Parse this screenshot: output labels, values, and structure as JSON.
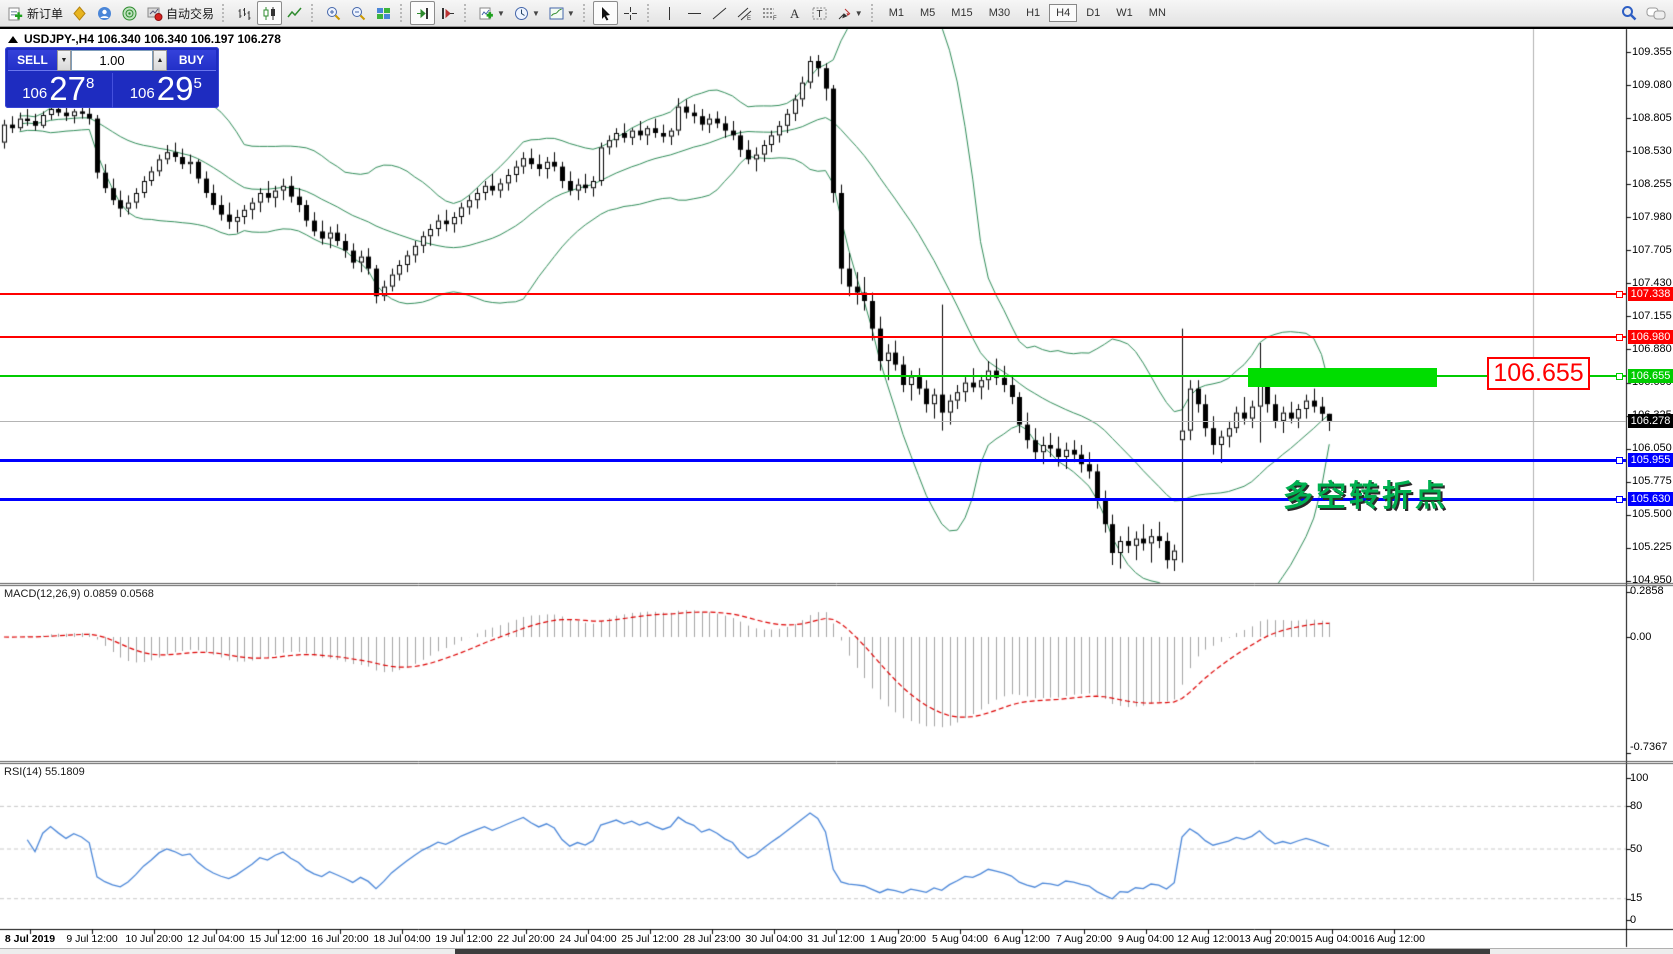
{
  "toolbar": {
    "new_order_label": "新订单",
    "autotrading_label": "自动交易",
    "timeframes": [
      "M1",
      "M5",
      "M15",
      "M30",
      "H1",
      "H4",
      "D1",
      "W1",
      "MN"
    ],
    "active_timeframe": "H4"
  },
  "chart": {
    "title": "USDJPY-,H4  106.340 106.340 106.197 106.278",
    "symbol": "USDJPY-",
    "period": "H4",
    "ohlc": {
      "open": "106.340",
      "high": "106.340",
      "low": "106.197",
      "close": "106.278"
    },
    "candles": [
      [
        108.6,
        108.79,
        108.55,
        108.75
      ],
      [
        108.75,
        108.82,
        108.68,
        108.72
      ],
      [
        108.72,
        108.85,
        108.7,
        108.8
      ],
      [
        108.8,
        108.88,
        108.74,
        108.78
      ],
      [
        108.78,
        108.84,
        108.7,
        108.74
      ],
      [
        108.74,
        108.86,
        108.72,
        108.83
      ],
      [
        108.83,
        108.92,
        108.79,
        108.88
      ],
      [
        108.88,
        108.95,
        108.82,
        108.85
      ],
      [
        108.85,
        108.9,
        108.78,
        108.82
      ],
      [
        108.82,
        108.88,
        108.76,
        108.86
      ],
      [
        108.86,
        108.93,
        108.8,
        108.84
      ],
      [
        108.84,
        108.89,
        108.75,
        108.8
      ],
      [
        108.8,
        108.83,
        108.3,
        108.35
      ],
      [
        108.35,
        108.42,
        108.18,
        108.22
      ],
      [
        108.22,
        108.3,
        108.08,
        108.12
      ],
      [
        108.12,
        108.2,
        107.98,
        108.05
      ],
      [
        108.05,
        108.16,
        108.0,
        108.1
      ],
      [
        108.1,
        108.22,
        108.05,
        108.18
      ],
      [
        108.18,
        108.32,
        108.14,
        108.28
      ],
      [
        108.28,
        108.4,
        108.24,
        108.36
      ],
      [
        108.36,
        108.5,
        108.32,
        108.46
      ],
      [
        108.46,
        108.58,
        108.42,
        108.52
      ],
      [
        108.52,
        108.6,
        108.44,
        108.48
      ],
      [
        108.48,
        108.55,
        108.38,
        108.42
      ],
      [
        108.42,
        108.5,
        108.34,
        108.44
      ],
      [
        108.44,
        108.46,
        108.26,
        108.3
      ],
      [
        108.3,
        108.36,
        108.14,
        108.18
      ],
      [
        108.18,
        108.25,
        108.04,
        108.08
      ],
      [
        108.08,
        108.16,
        107.95,
        108.0
      ],
      [
        108.0,
        108.1,
        107.88,
        107.94
      ],
      [
        107.94,
        108.04,
        107.85,
        107.98
      ],
      [
        107.98,
        108.08,
        107.92,
        108.04
      ],
      [
        108.04,
        108.14,
        107.96,
        108.1
      ],
      [
        108.1,
        108.22,
        108.02,
        108.18
      ],
      [
        108.18,
        108.28,
        108.1,
        108.14
      ],
      [
        108.14,
        108.24,
        108.06,
        108.2
      ],
      [
        108.2,
        108.3,
        108.12,
        108.24
      ],
      [
        108.24,
        108.32,
        108.1,
        108.15
      ],
      [
        108.15,
        108.22,
        108.02,
        108.08
      ],
      [
        108.08,
        108.12,
        107.9,
        107.95
      ],
      [
        107.95,
        108.02,
        107.82,
        107.86
      ],
      [
        107.86,
        107.95,
        107.75,
        107.8
      ],
      [
        107.8,
        107.9,
        107.72,
        107.85
      ],
      [
        107.85,
        107.92,
        107.74,
        107.78
      ],
      [
        107.78,
        107.84,
        107.64,
        107.7
      ],
      [
        107.7,
        107.76,
        107.55,
        107.6
      ],
      [
        107.6,
        107.7,
        107.52,
        107.65
      ],
      [
        107.65,
        107.72,
        107.5,
        107.55
      ],
      [
        107.55,
        107.58,
        107.26,
        107.32
      ],
      [
        107.32,
        107.45,
        107.28,
        107.4
      ],
      [
        107.4,
        107.55,
        107.36,
        107.5
      ],
      [
        107.5,
        107.62,
        107.45,
        107.58
      ],
      [
        107.58,
        107.7,
        107.52,
        107.66
      ],
      [
        107.66,
        107.78,
        107.6,
        107.74
      ],
      [
        107.74,
        107.86,
        107.68,
        107.82
      ],
      [
        107.82,
        107.92,
        107.74,
        107.88
      ],
      [
        107.88,
        108.0,
        107.82,
        107.95
      ],
      [
        107.95,
        108.04,
        107.86,
        107.92
      ],
      [
        107.92,
        108.02,
        107.85,
        107.98
      ],
      [
        107.98,
        108.1,
        107.92,
        108.06
      ],
      [
        108.06,
        108.16,
        108.0,
        108.12
      ],
      [
        108.12,
        108.22,
        108.05,
        108.18
      ],
      [
        108.18,
        108.28,
        108.12,
        108.24
      ],
      [
        108.24,
        108.34,
        108.16,
        108.2
      ],
      [
        108.2,
        108.3,
        108.14,
        108.26
      ],
      [
        108.26,
        108.38,
        108.2,
        108.33
      ],
      [
        108.33,
        108.45,
        108.27,
        108.4
      ],
      [
        108.4,
        108.52,
        108.34,
        108.47
      ],
      [
        108.47,
        108.55,
        108.38,
        108.42
      ],
      [
        108.42,
        108.5,
        108.32,
        108.38
      ],
      [
        108.38,
        108.48,
        108.3,
        108.44
      ],
      [
        108.44,
        108.52,
        108.36,
        108.4
      ],
      [
        108.4,
        108.44,
        108.22,
        108.28
      ],
      [
        108.28,
        108.36,
        108.16,
        108.2
      ],
      [
        108.2,
        108.3,
        108.12,
        108.25
      ],
      [
        108.25,
        108.34,
        108.18,
        108.22
      ],
      [
        108.22,
        108.32,
        108.15,
        108.28
      ],
      [
        108.28,
        108.6,
        108.24,
        108.56
      ],
      [
        108.56,
        108.66,
        108.5,
        108.62
      ],
      [
        108.62,
        108.72,
        108.56,
        108.68
      ],
      [
        108.68,
        108.76,
        108.6,
        108.64
      ],
      [
        108.64,
        108.72,
        108.58,
        108.7
      ],
      [
        108.7,
        108.78,
        108.62,
        108.66
      ],
      [
        108.66,
        108.74,
        108.58,
        108.72
      ],
      [
        108.72,
        108.8,
        108.64,
        108.68
      ],
      [
        108.68,
        108.75,
        108.6,
        108.65
      ],
      [
        108.65,
        108.72,
        108.58,
        108.7
      ],
      [
        108.7,
        108.97,
        108.66,
        108.9
      ],
      [
        108.9,
        108.96,
        108.8,
        108.85
      ],
      [
        108.85,
        108.92,
        108.76,
        108.82
      ],
      [
        108.82,
        108.88,
        108.7,
        108.75
      ],
      [
        108.75,
        108.84,
        108.68,
        108.8
      ],
      [
        108.8,
        108.86,
        108.72,
        108.76
      ],
      [
        108.76,
        108.82,
        108.64,
        108.7
      ],
      [
        108.7,
        108.78,
        108.62,
        108.66
      ],
      [
        108.66,
        108.7,
        108.48,
        108.54
      ],
      [
        108.54,
        108.62,
        108.42,
        108.46
      ],
      [
        108.46,
        108.56,
        108.36,
        108.5
      ],
      [
        108.5,
        108.62,
        108.44,
        108.58
      ],
      [
        108.58,
        108.7,
        108.52,
        108.66
      ],
      [
        108.66,
        108.78,
        108.6,
        108.74
      ],
      [
        108.74,
        108.88,
        108.68,
        108.84
      ],
      [
        108.84,
        109.0,
        108.78,
        108.96
      ],
      [
        108.96,
        109.15,
        108.9,
        109.1
      ],
      [
        109.1,
        109.32,
        109.05,
        109.28
      ],
      [
        109.28,
        109.33,
        109.15,
        109.22
      ],
      [
        109.22,
        109.26,
        108.95,
        109.05
      ],
      [
        109.05,
        109.08,
        108.1,
        108.18
      ],
      [
        108.18,
        108.25,
        107.42,
        107.55
      ],
      [
        107.55,
        107.68,
        107.32,
        107.4
      ],
      [
        107.4,
        107.52,
        107.25,
        107.35
      ],
      [
        107.35,
        107.48,
        107.2,
        107.28
      ],
      [
        107.28,
        107.35,
        106.95,
        107.05
      ],
      [
        107.05,
        107.15,
        106.7,
        106.78
      ],
      [
        106.78,
        106.92,
        106.62,
        106.85
      ],
      [
        106.85,
        106.95,
        106.7,
        106.75
      ],
      [
        106.75,
        106.82,
        106.52,
        106.58
      ],
      [
        106.58,
        106.7,
        106.45,
        106.65
      ],
      [
        106.65,
        106.72,
        106.5,
        106.55
      ],
      [
        106.55,
        106.62,
        106.35,
        106.42
      ],
      [
        106.42,
        106.55,
        106.3,
        106.5
      ],
      [
        106.5,
        107.25,
        106.2,
        106.35
      ],
      [
        106.35,
        106.5,
        106.25,
        106.45
      ],
      [
        106.45,
        106.58,
        106.38,
        106.52
      ],
      [
        106.52,
        106.65,
        106.44,
        106.6
      ],
      [
        106.6,
        106.72,
        106.52,
        106.56
      ],
      [
        106.56,
        106.66,
        106.46,
        106.62
      ],
      [
        106.62,
        106.78,
        106.54,
        106.7
      ],
      [
        106.7,
        106.8,
        106.58,
        106.64
      ],
      [
        106.64,
        106.74,
        106.52,
        106.58
      ],
      [
        106.58,
        106.66,
        106.42,
        106.48
      ],
      [
        106.48,
        106.52,
        106.18,
        106.25
      ],
      [
        106.25,
        106.35,
        106.05,
        106.12
      ],
      [
        106.12,
        106.22,
        105.95,
        106.02
      ],
      [
        106.02,
        106.15,
        105.92,
        106.08
      ],
      [
        106.08,
        106.18,
        105.98,
        106.05
      ],
      [
        106.05,
        106.15,
        105.9,
        105.98
      ],
      [
        105.98,
        106.1,
        105.88,
        106.04
      ],
      [
        106.04,
        106.12,
        105.94,
        106.0
      ],
      [
        106.0,
        106.08,
        105.85,
        105.92
      ],
      [
        105.92,
        106.02,
        105.8,
        105.86
      ],
      [
        105.86,
        105.92,
        105.55,
        105.62
      ],
      [
        105.62,
        105.7,
        105.35,
        105.42
      ],
      [
        105.42,
        105.5,
        105.08,
        105.18
      ],
      [
        105.18,
        105.32,
        105.05,
        105.28
      ],
      [
        105.28,
        105.4,
        105.18,
        105.24
      ],
      [
        105.24,
        105.36,
        105.12,
        105.3
      ],
      [
        105.3,
        105.42,
        105.2,
        105.26
      ],
      [
        105.26,
        105.38,
        105.1,
        105.32
      ],
      [
        105.32,
        105.44,
        105.22,
        105.28
      ],
      [
        105.28,
        105.35,
        105.05,
        105.12
      ],
      [
        105.12,
        105.25,
        105.03,
        105.2
      ],
      [
        106.12,
        107.05,
        105.1,
        106.2
      ],
      [
        106.2,
        106.62,
        106.12,
        106.55
      ],
      [
        106.55,
        106.62,
        106.35,
        106.42
      ],
      [
        106.42,
        106.5,
        106.15,
        106.22
      ],
      [
        106.22,
        106.32,
        106.0,
        106.08
      ],
      [
        106.08,
        106.2,
        105.93,
        106.15
      ],
      [
        106.15,
        106.28,
        106.06,
        106.22
      ],
      [
        106.22,
        106.4,
        106.18,
        106.35
      ],
      [
        106.35,
        106.48,
        106.25,
        106.3
      ],
      [
        106.3,
        106.45,
        106.22,
        106.4
      ],
      [
        106.4,
        106.93,
        106.1,
        106.6
      ],
      [
        106.6,
        106.68,
        106.35,
        106.42
      ],
      [
        106.42,
        106.5,
        106.22,
        106.28
      ],
      [
        106.28,
        106.4,
        106.18,
        106.35
      ],
      [
        106.35,
        106.44,
        106.26,
        106.3
      ],
      [
        106.3,
        106.42,
        106.22,
        106.38
      ],
      [
        106.38,
        106.5,
        106.3,
        106.45
      ],
      [
        106.45,
        106.55,
        106.35,
        106.4
      ],
      [
        106.4,
        106.48,
        106.28,
        106.34
      ],
      [
        106.34,
        106.34,
        106.197,
        106.278
      ]
    ]
  },
  "one_click": {
    "sell_label": "SELL",
    "buy_label": "BUY",
    "volume": "1.00",
    "sell_price_small": "106",
    "sell_price_big": "27",
    "sell_price_sup": "8",
    "buy_price_small": "106",
    "buy_price_big": "29",
    "buy_price_sup": "5"
  },
  "price_axis": {
    "ticks": [
      "109.355",
      "109.080",
      "108.805",
      "108.530",
      "108.255",
      "107.980",
      "107.705",
      "107.430",
      "107.155",
      "106.880",
      "106.600",
      "106.325",
      "106.050",
      "105.775",
      "105.500",
      "105.225",
      "104.950"
    ],
    "current_label": {
      "text": "106.278",
      "price": 106.278,
      "bg": "#000000",
      "fg": "#ffffff"
    }
  },
  "lines": [
    {
      "name": "resistance-1",
      "label": "107.338",
      "price": 107.338,
      "color": "#ff0000",
      "width": 2
    },
    {
      "name": "resistance-2",
      "label": "106.980",
      "price": 106.98,
      "color": "#ff0000",
      "width": 2
    },
    {
      "name": "pivot-green",
      "label": "106.655",
      "price": 106.655,
      "color": "#00cc00",
      "width": 2
    },
    {
      "name": "support-1",
      "label": "105.955",
      "price": 105.955,
      "color": "#0000ff",
      "width": 3
    },
    {
      "name": "support-2",
      "label": "105.630",
      "price": 105.63,
      "color": "#0000ff",
      "width": 3
    }
  ],
  "annotations": {
    "price_box_text": "106.655",
    "turning_point_text": "多空转折点",
    "green_rect_color": "#00dd00"
  },
  "time_axis": {
    "labels": [
      "8 Jul 2019",
      "9 Jul 12:00",
      "10 Jul 20:00",
      "12 Jul 04:00",
      "15 Jul 12:00",
      "16 Jul 20:00",
      "18 Jul 04:00",
      "19 Jul 12:00",
      "22 Jul 20:00",
      "24 Jul 04:00",
      "25 Jul 12:00",
      "28 Jul 23:00",
      "30 Jul 04:00",
      "31 Jul 12:00",
      "1 Aug 20:00",
      "5 Aug 04:00",
      "6 Aug 12:00",
      "7 Aug 20:00",
      "9 Aug 04:00",
      "12 Aug 12:00",
      "13 Aug 20:00",
      "15 Aug 04:00",
      "16 Aug 12:00"
    ]
  },
  "macd": {
    "name": "MACD(12,26,9)",
    "value_main": "0.0859",
    "value_signal": "0.0568",
    "axis_labels": [
      {
        "text": "0.2858",
        "v": 0.2858
      },
      {
        "text": "0.00",
        "v": 0
      },
      {
        "text": "-0.7367",
        "v": -0.7367
      }
    ],
    "histogram_color": "#a4a4a4",
    "signal_color": "#dd0000"
  },
  "rsi": {
    "name": "RSI(14)",
    "value": "55.1809",
    "axis_labels": [
      {
        "text": "100",
        "v": 100
      },
      {
        "text": "80",
        "v": 80
      },
      {
        "text": "50",
        "v": 50
      },
      {
        "text": "15",
        "v": 15
      },
      {
        "text": "0",
        "v": 0
      }
    ],
    "line_color": "#4a86d8",
    "level_values": [
      80,
      50,
      15
    ]
  },
  "colors": {
    "bollinger": "#2e8b57",
    "bull_candle": "#ffffff",
    "bear_candle": "#000000",
    "current_price_line": "#b4b4b4"
  }
}
